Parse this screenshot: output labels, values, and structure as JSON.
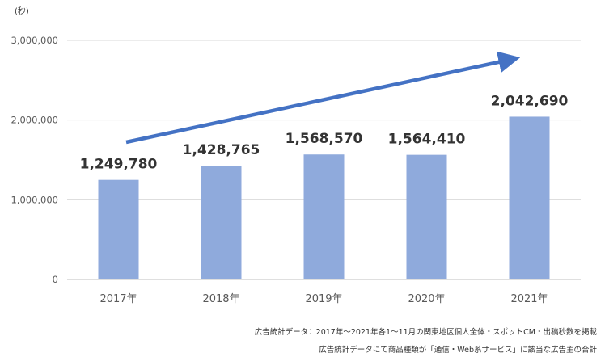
{
  "chart_data": {
    "type": "bar",
    "unit_label": "(秒)",
    "categories": [
      "2017年",
      "2018年",
      "2019年",
      "2020年",
      "2021年"
    ],
    "values": [
      1249780,
      1428765,
      1568570,
      1564410,
      2042690
    ],
    "data_labels": [
      "1,249,780",
      "1,428,765",
      "1,568,570",
      "1,564,410",
      "2,042,690"
    ],
    "yticks": [
      0,
      1000000,
      2000000,
      3000000
    ],
    "ytick_labels": [
      "0",
      "1,000,000",
      "2,000,000",
      "3,000,000"
    ],
    "ylim": [
      0,
      3000000
    ],
    "grid": true,
    "bar_color": "#8faadc",
    "arrow_color": "#4472c4",
    "annotation": "upward trend arrow"
  },
  "notes": [
    "広告統計データ：2017年～2021年各1～11月の関東地区個人全体・スポットCM・出稿秒数を掲載",
    "広告統計データにて商品種類が「通信・Web系サービス」に該当な広告主の合計"
  ]
}
